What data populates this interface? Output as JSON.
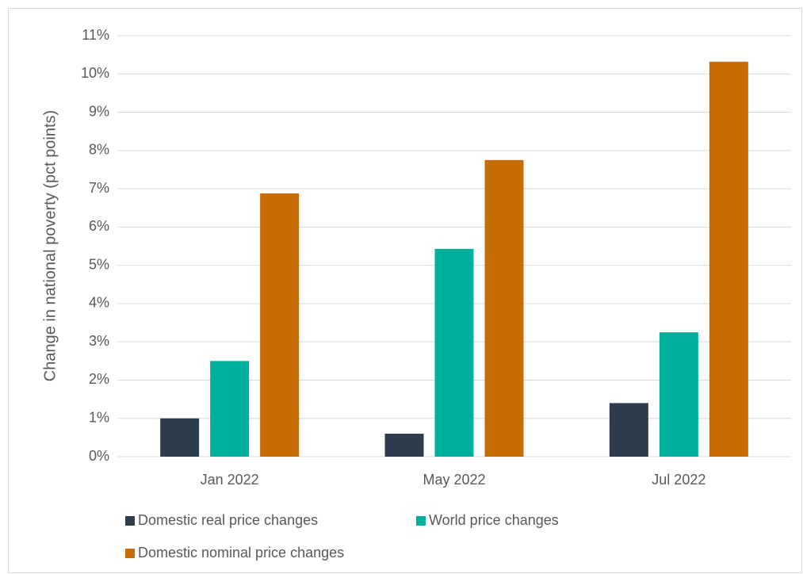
{
  "chart_data": {
    "type": "bar",
    "y_label": "Change in national poverty (pct points)",
    "categories": [
      "Jan 2022",
      "May 2022",
      "Jul 2022"
    ],
    "series": [
      {
        "name": "Domestic real price changes",
        "color": "#2e3d4d",
        "values": [
          1.0,
          0.6,
          1.4
        ]
      },
      {
        "name": "World price changes",
        "color": "#00b09e",
        "values": [
          2.5,
          5.43,
          3.25
        ]
      },
      {
        "name": "Domestic nominal price changes",
        "color": "#c86c05",
        "values": [
          6.88,
          7.75,
          10.32
        ]
      }
    ],
    "ylim": [
      0,
      11
    ],
    "yticks": [
      {
        "value": 0,
        "label": "0%"
      },
      {
        "value": 1,
        "label": "1%"
      },
      {
        "value": 2,
        "label": "2%"
      },
      {
        "value": 3,
        "label": "3%"
      },
      {
        "value": 4,
        "label": "4%"
      },
      {
        "value": 5,
        "label": "5%"
      },
      {
        "value": 6,
        "label": "6%"
      },
      {
        "value": 7,
        "label": "7%"
      },
      {
        "value": 8,
        "label": "8%"
      },
      {
        "value": 9,
        "label": "9%"
      },
      {
        "value": 10,
        "label": "10%"
      },
      {
        "value": 11,
        "label": "11%"
      }
    ],
    "grid": true,
    "legend": "bottom"
  }
}
